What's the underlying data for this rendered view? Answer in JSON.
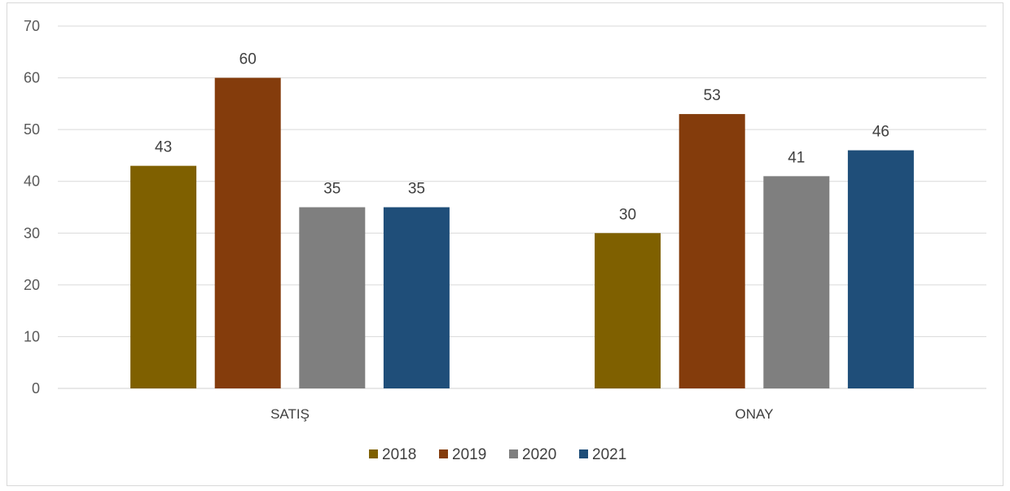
{
  "chart_data": {
    "type": "bar",
    "categories": [
      "SATIŞ",
      "ONAY"
    ],
    "series": [
      {
        "name": "2018",
        "values": [
          43,
          30
        ],
        "color": "#7f6000"
      },
      {
        "name": "2019",
        "values": [
          60,
          53
        ],
        "color": "#843c0c"
      },
      {
        "name": "2020",
        "values": [
          35,
          41
        ],
        "color": "#7f7f7f"
      },
      {
        "name": "2021",
        "values": [
          35,
          46
        ],
        "color": "#1f4e79"
      }
    ],
    "ylim": [
      0,
      70
    ],
    "yticks": [
      0,
      10,
      20,
      30,
      40,
      50,
      60,
      70
    ],
    "grid": true,
    "legend": "bottom",
    "title": "",
    "xlabel": "",
    "ylabel": ""
  }
}
